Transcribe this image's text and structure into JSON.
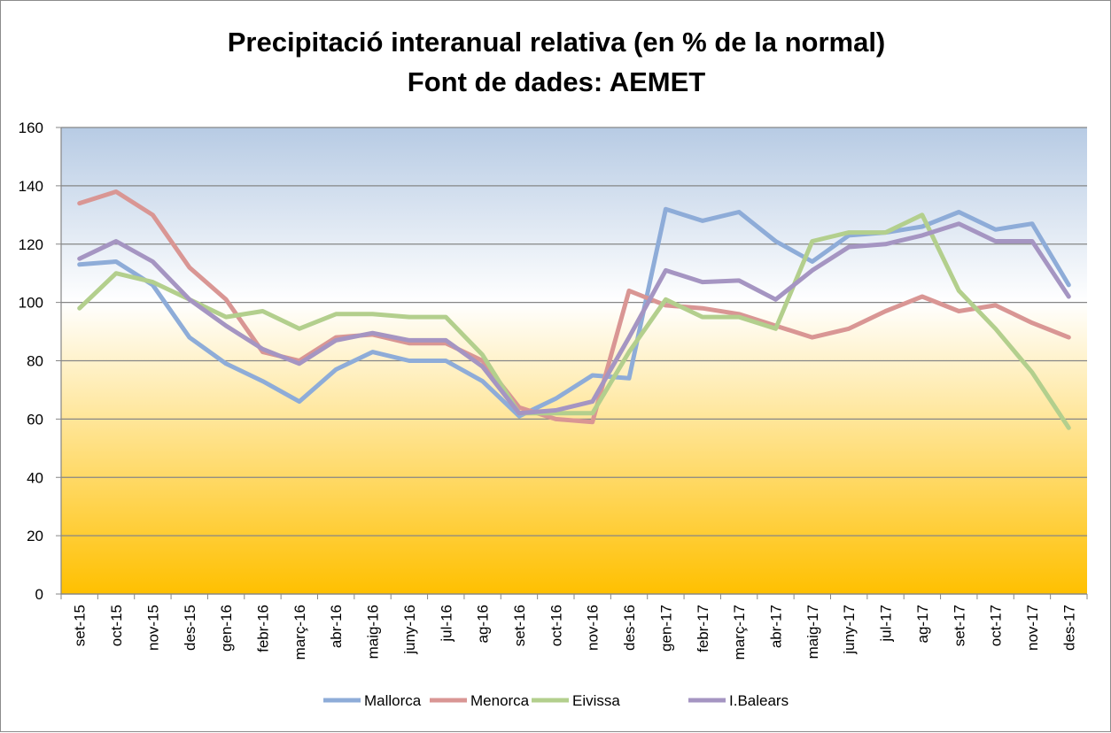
{
  "chart_data": {
    "type": "line",
    "title": [
      "Precipitació interanual relativa (en % de la normal)",
      "Font de dades: AEMET"
    ],
    "xlabel": "",
    "ylabel": "",
    "ylim": [
      0,
      160
    ],
    "yticks": [
      0,
      20,
      40,
      60,
      80,
      100,
      120,
      140,
      160
    ],
    "grid": true,
    "legend_position": "bottom",
    "background_gradient": [
      "#b7cbe4",
      "#ffffff",
      "#ffc000"
    ],
    "categories": [
      "set-15",
      "oct-15",
      "nov-15",
      "des-15",
      "gen-16",
      "febr-16",
      "març-16",
      "abr-16",
      "maig-16",
      "juny-16",
      "jul-16",
      "ag-16",
      "set-16",
      "oct-16",
      "nov-16",
      "des-16",
      "gen-17",
      "febr-17",
      "març-17",
      "abr-17",
      "maig-17",
      "juny-17",
      "jul-17",
      "ag-17",
      "set-17",
      "oct-17",
      "nov-17",
      "des-17"
    ],
    "series": [
      {
        "name": "Mallorca",
        "color": "#8eacd8",
        "values": [
          113,
          114,
          106,
          88,
          79,
          73,
          66,
          77,
          83,
          80,
          80,
          73,
          61,
          67,
          75,
          74,
          132,
          128,
          131,
          121,
          114,
          123,
          124,
          126,
          131,
          125,
          127,
          106
        ]
      },
      {
        "name": "Menorca",
        "color": "#d99694",
        "values": [
          134,
          138,
          130,
          112,
          101,
          83,
          80,
          88,
          89,
          86,
          86,
          80,
          64,
          60,
          59,
          104,
          99,
          98,
          96,
          92,
          88,
          91,
          97,
          102,
          97,
          99,
          93,
          88
        ]
      },
      {
        "name": "Eivissa",
        "color": "#b3cf8d",
        "values": [
          98,
          110,
          107,
          101,
          95,
          97,
          91,
          96,
          96,
          95,
          95,
          82,
          62,
          62,
          62,
          83,
          101,
          95,
          95,
          91,
          121,
          124,
          124,
          130,
          104,
          91,
          76,
          57
        ]
      },
      {
        "name": "I.Balears",
        "color": "#a595c2",
        "values": [
          115,
          121,
          114,
          101,
          92,
          84,
          79,
          87,
          89.5,
          87,
          87,
          78,
          62,
          63,
          66,
          88,
          111,
          107,
          107.5,
          101,
          111,
          119,
          120,
          123,
          127,
          121,
          121,
          102
        ]
      }
    ]
  }
}
